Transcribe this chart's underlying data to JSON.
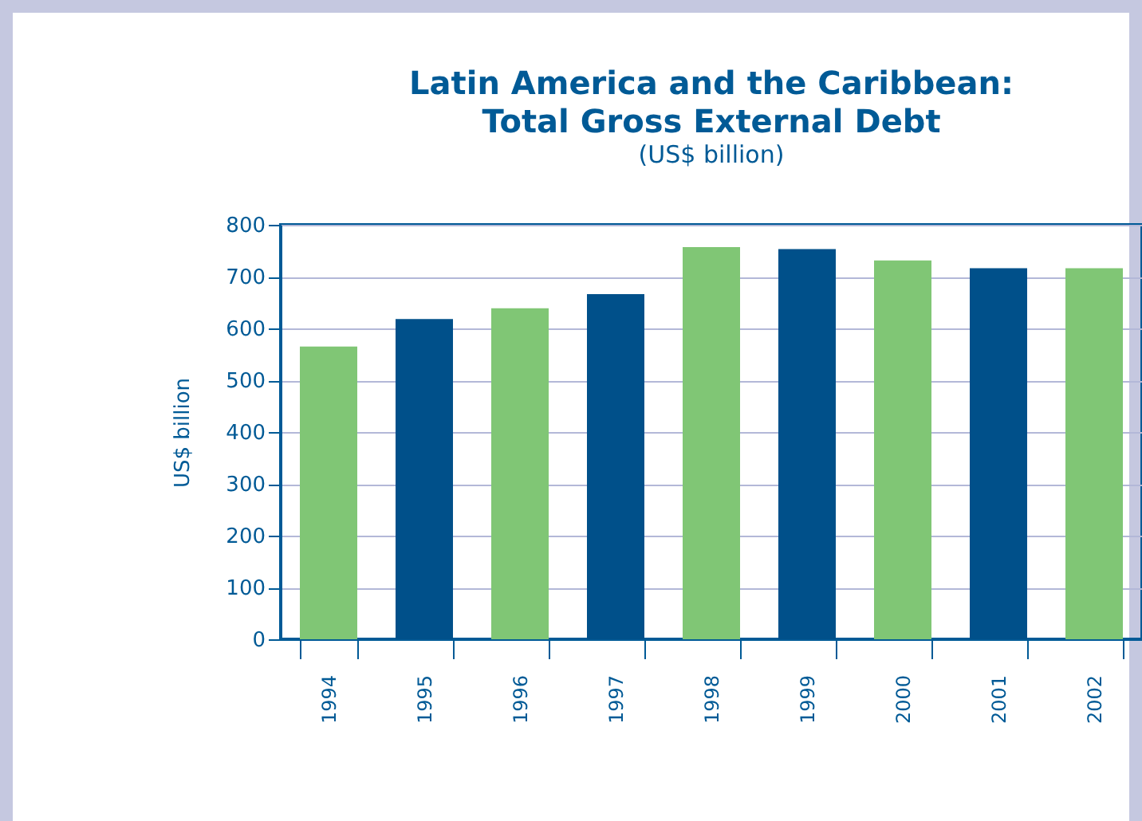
{
  "chart_data": {
    "type": "bar",
    "title": [
      "Latin America and the Caribbean:",
      "Total Gross External Debt"
    ],
    "subtitle": "(US$ billion)",
    "ylabel": "US$ billion",
    "categories": [
      "1994",
      "1995",
      "1996",
      "1997",
      "1998",
      "1999",
      "2000",
      "2001",
      "2002"
    ],
    "values": [
      565,
      618,
      639,
      666,
      757,
      753,
      731,
      716,
      716
    ],
    "colors": [
      "#80c675",
      "#00508a",
      "#80c675",
      "#00508a",
      "#80c675",
      "#00508a",
      "#80c675",
      "#00508a",
      "#80c675"
    ],
    "ylim": [
      0,
      800
    ],
    "yticks": [
      0,
      100,
      200,
      300,
      400,
      500,
      600,
      700,
      800
    ],
    "grid": "y",
    "legend": false
  }
}
